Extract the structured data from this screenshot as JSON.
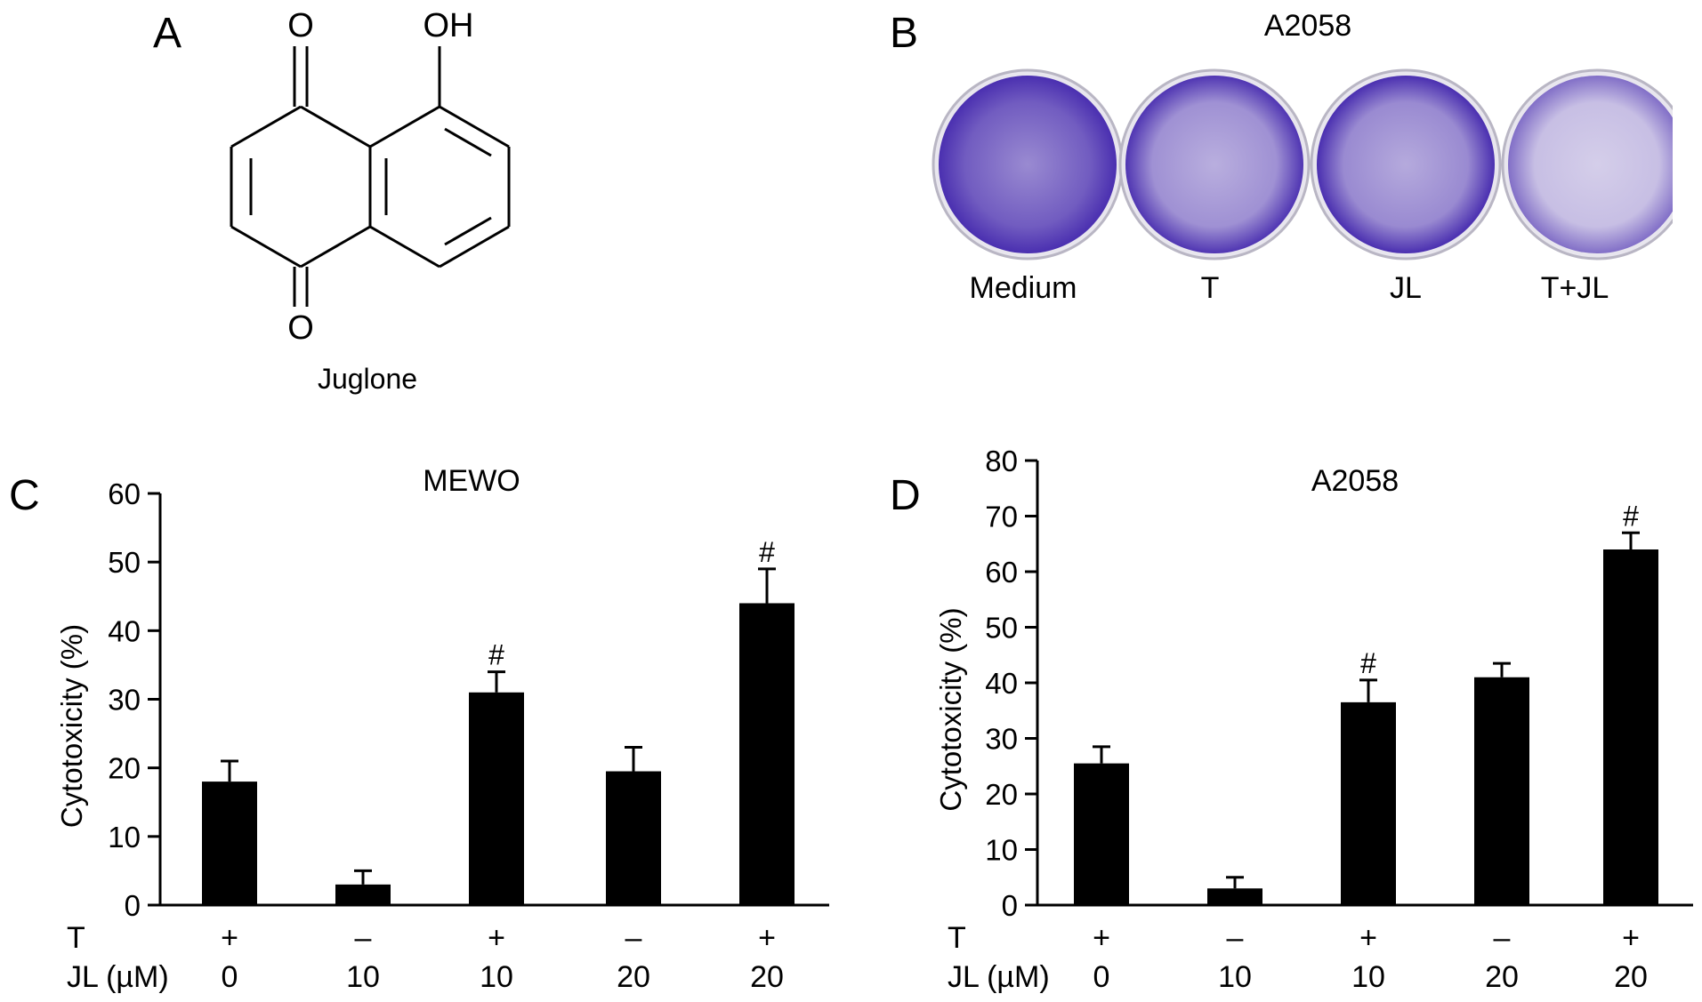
{
  "panels": {
    "A": {
      "letter": "A",
      "structure_atoms": {
        "o_top": "O",
        "oh": "OH",
        "o_bottom": "O"
      },
      "caption": "Juglone"
    },
    "B": {
      "letter": "B",
      "title": "A2058",
      "wells": [
        {
          "label": "Medium",
          "stain_intensity": 0.95
        },
        {
          "label": "T",
          "stain_intensity": 0.55
        },
        {
          "label": "JL",
          "stain_intensity": 0.6
        },
        {
          "label": "T+JL",
          "stain_intensity": 0.2
        }
      ],
      "stain_color": "#4a2fb0"
    }
  },
  "chart_data": [
    {
      "panel": "C",
      "type": "bar",
      "title": "MEWO",
      "ylabel": "Cytotoxicity (%)",
      "ylim": [
        0,
        60
      ],
      "yticks": [
        0,
        10,
        20,
        30,
        40,
        50,
        60
      ],
      "row_labels": [
        "T",
        "JL (µM)"
      ],
      "T": [
        "+",
        "–",
        "+",
        "–",
        "+"
      ],
      "JL": [
        "0",
        "10",
        "10",
        "20",
        "20"
      ],
      "values": [
        18,
        3,
        31,
        19.5,
        44
      ],
      "errors": [
        3,
        2,
        3,
        3.5,
        5
      ],
      "annotations": [
        "",
        "",
        "#",
        "",
        "#"
      ],
      "bar_color": "#000000"
    },
    {
      "panel": "D",
      "type": "bar",
      "title": "A2058",
      "ylabel": "Cytotoxicity (%)",
      "ylim": [
        0,
        80
      ],
      "yticks": [
        0,
        10,
        20,
        30,
        40,
        50,
        60,
        70,
        80
      ],
      "row_labels": [
        "T",
        "JL (µM)"
      ],
      "T": [
        "+",
        "–",
        "+",
        "–",
        "+"
      ],
      "JL": [
        "0",
        "10",
        "10",
        "20",
        "20"
      ],
      "values": [
        25.5,
        3,
        36.5,
        41,
        64
      ],
      "errors": [
        3,
        2,
        4,
        2.5,
        3
      ],
      "annotations": [
        "",
        "",
        "#",
        "",
        "#"
      ],
      "bar_color": "#000000"
    }
  ]
}
